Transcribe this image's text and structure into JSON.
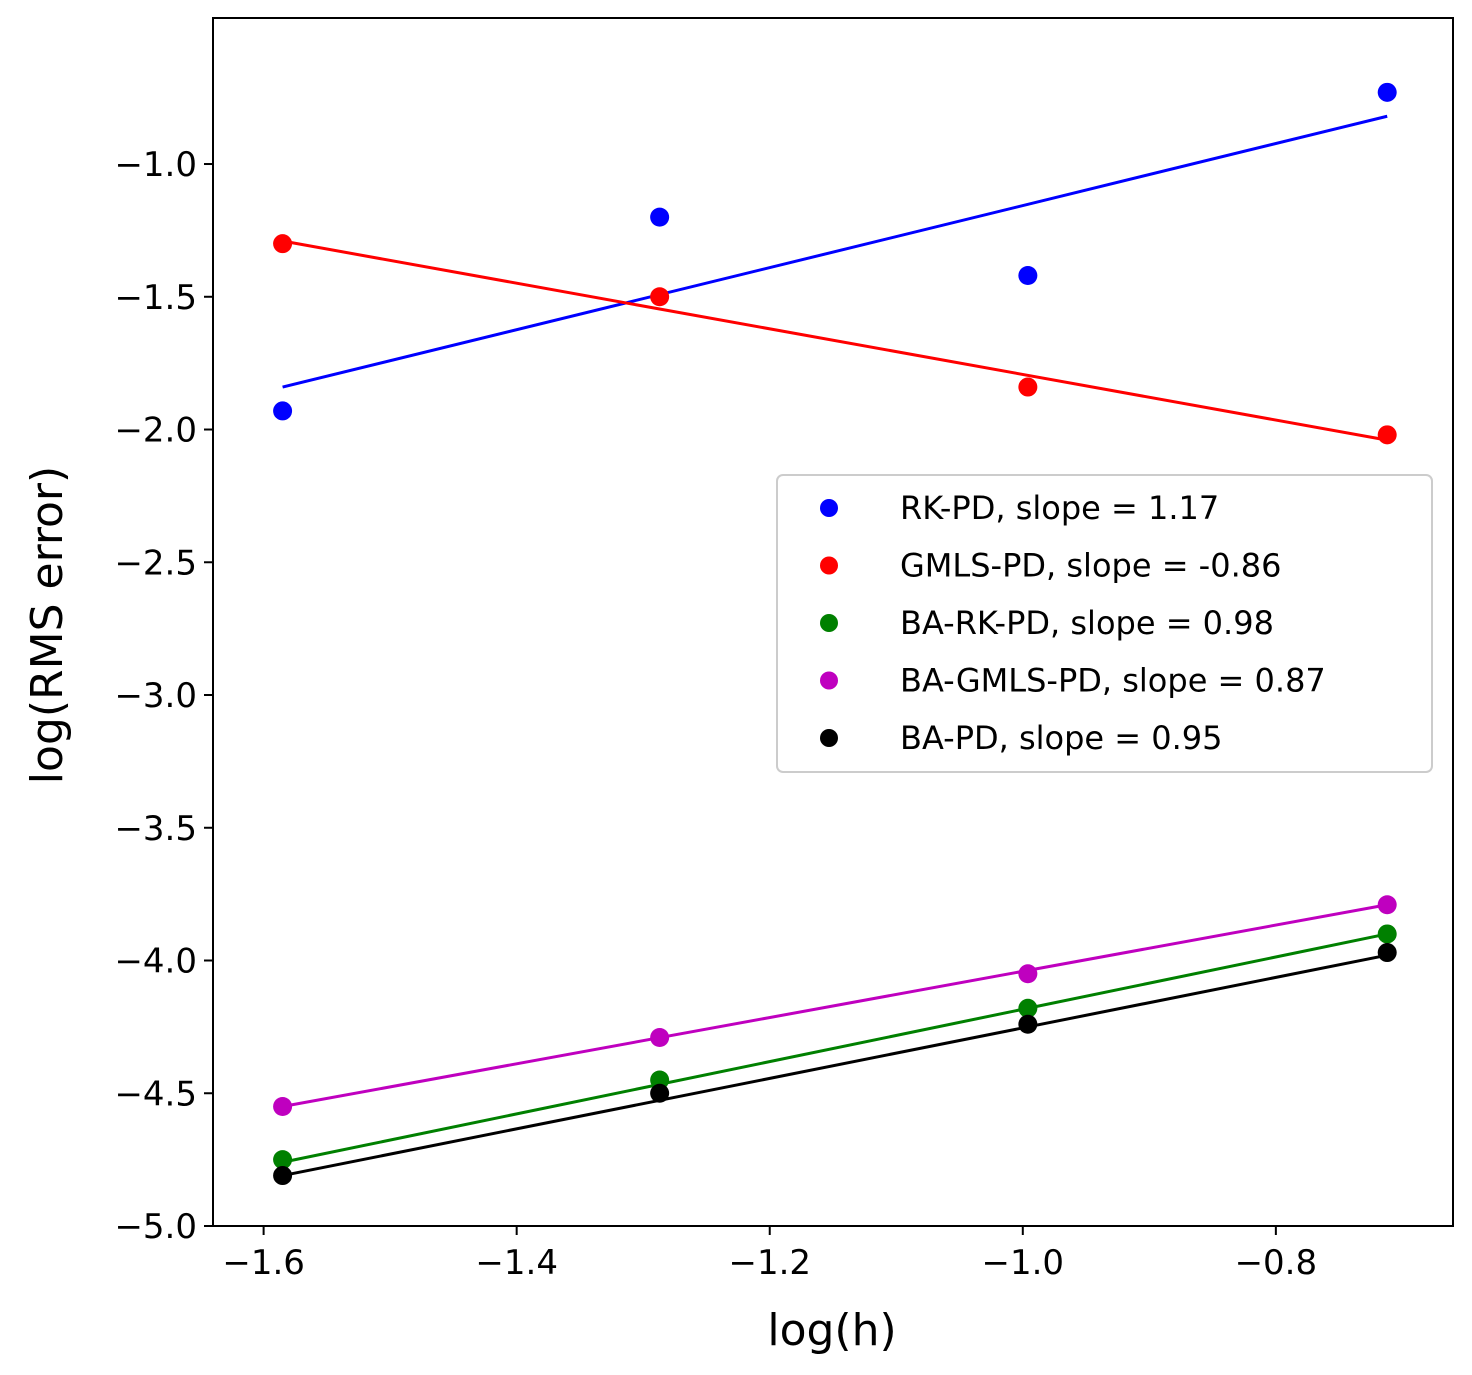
{
  "chart_data": {
    "type": "scatter",
    "title": "",
    "xlabel": "log(h)",
    "ylabel": "log(RMS error)",
    "xlim": [
      -1.64,
      -0.66
    ],
    "ylim": [
      -5.0,
      -0.45
    ],
    "xticks": [
      -1.6,
      -1.4,
      -1.2,
      -1.0,
      -0.8
    ],
    "yticks": [
      -5.0,
      -4.5,
      -4.0,
      -3.5,
      -3.0,
      -2.5,
      -2.0,
      -1.5,
      -1.0
    ],
    "xtick_labels": [
      "−1.6",
      "−1.4",
      "−1.2",
      "−1.0",
      "−0.8"
    ],
    "ytick_labels": [
      "−5.0",
      "−4.5",
      "−4.0",
      "−3.5",
      "−3.0",
      "−2.5",
      "−2.0",
      "−1.5",
      "−1.0"
    ],
    "grid": false,
    "legend_position": "center-right",
    "series": [
      {
        "name": "RK-PD, slope = 1.17",
        "color": "#0000ff",
        "x": [
          -1.585,
          -1.287,
          -0.996,
          -0.712
        ],
        "y": [
          -1.93,
          -1.2,
          -1.42,
          -0.73
        ],
        "fit": {
          "x": [
            -1.585,
            -0.712
          ],
          "y": [
            -1.84,
            -0.82
          ]
        }
      },
      {
        "name": "GMLS-PD, slope = -0.86",
        "color": "#ff0000",
        "x": [
          -1.585,
          -1.287,
          -0.996,
          -0.712
        ],
        "y": [
          -1.3,
          -1.5,
          -1.84,
          -2.02
        ],
        "fit": {
          "x": [
            -1.585,
            -0.712
          ],
          "y": [
            -1.29,
            -2.04
          ]
        }
      },
      {
        "name": "BA-RK-PD, slope = 0.98",
        "color": "#008000",
        "x": [
          -1.585,
          -1.287,
          -0.996,
          -0.712
        ],
        "y": [
          -4.75,
          -4.45,
          -4.18,
          -3.9
        ],
        "fit": {
          "x": [
            -1.585,
            -0.712
          ],
          "y": [
            -4.76,
            -3.9
          ]
        }
      },
      {
        "name": "BA-GMLS-PD, slope = 0.87",
        "color": "#bf00bf",
        "x": [
          -1.585,
          -1.287,
          -0.996,
          -0.712
        ],
        "y": [
          -4.55,
          -4.29,
          -4.05,
          -3.79
        ],
        "fit": {
          "x": [
            -1.585,
            -0.712
          ],
          "y": [
            -4.55,
            -3.79
          ]
        }
      },
      {
        "name": "BA-PD, slope = 0.95",
        "color": "#000000",
        "x": [
          -1.585,
          -1.287,
          -0.996,
          -0.712
        ],
        "y": [
          -4.81,
          -4.5,
          -4.24,
          -3.97
        ],
        "fit": {
          "x": [
            -1.585,
            -0.712
          ],
          "y": [
            -4.81,
            -3.98
          ]
        }
      }
    ]
  }
}
